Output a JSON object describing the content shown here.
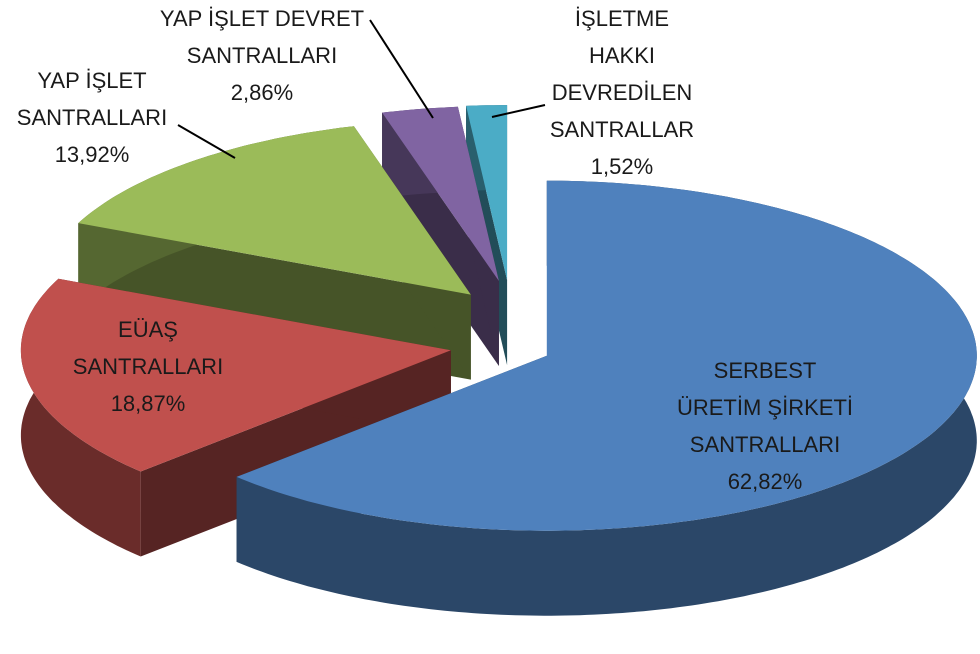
{
  "chart_data": {
    "type": "pie",
    "categories": [
      "SERBEST ÜRETİM ŞİRKETİ SANTRALLARI",
      "EÜAŞ SANTRALLARI",
      "YAP İŞLET SANTRALLARI",
      "YAP İŞLET DEVRET SANTRALLARI",
      "İŞLETME HAKKI DEVREDİLEN SANTRALLAR"
    ],
    "values": [
      62.82,
      18.87,
      13.92,
      2.86,
      1.52
    ],
    "value_labels": [
      "62,82%",
      "18,87%",
      "13,92%",
      "2,86%",
      "1,52%"
    ],
    "colors": [
      "#4f81bd",
      "#c0504d",
      "#9bbb59",
      "#8064a2",
      "#4bacc6"
    ]
  }
}
